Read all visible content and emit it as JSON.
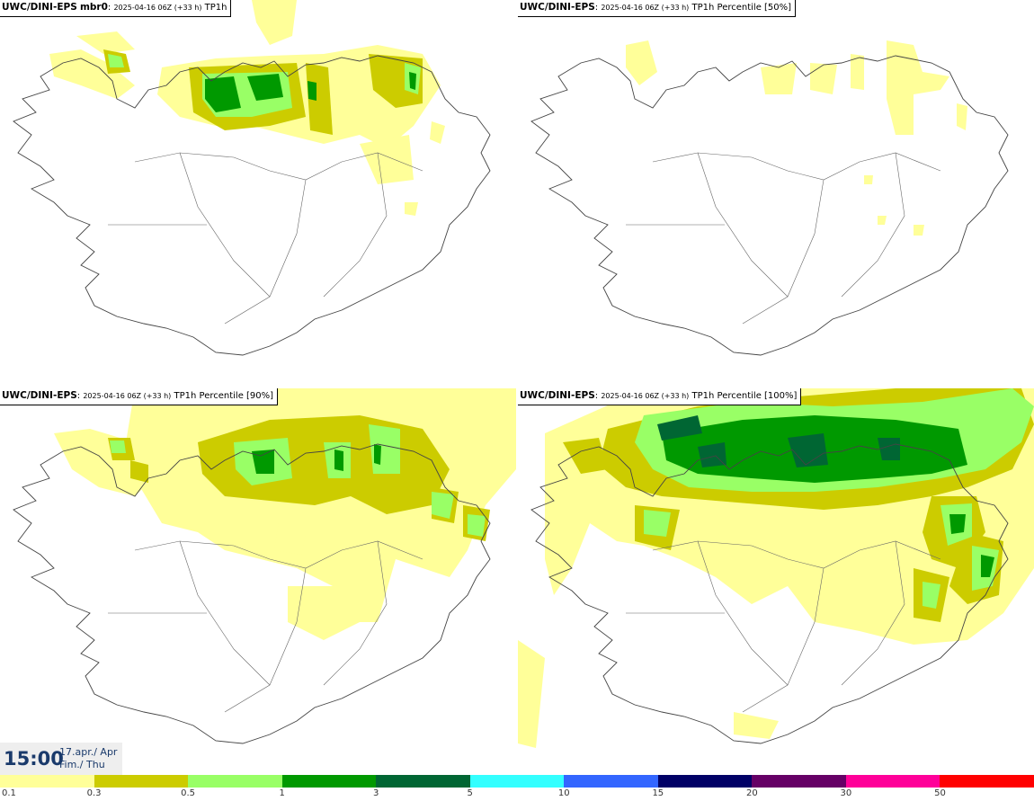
{
  "panels": [
    {
      "model": "UWC/DINI-EPS",
      "variant": "mbr0",
      "meta": "2025-04-16 06Z (+33 h)",
      "param": "TP1h"
    },
    {
      "model": "UWC/DINI-EPS",
      "variant": "",
      "meta": "2025-04-16 06Z (+33 h)",
      "param": "TP1h Percentile [50%]"
    },
    {
      "model": "UWC/DINI-EPS",
      "variant": "",
      "meta": "2025-04-16 06Z (+33 h)",
      "param": "TP1h Percentile [90%]"
    },
    {
      "model": "UWC/DINI-EPS",
      "variant": "",
      "meta": "2025-04-16 06Z (+33 h)",
      "param": "TP1h Percentile [100%]"
    }
  ],
  "valid_time": {
    "time": "15:00",
    "date_line1": "17.apr./ Apr",
    "date_line2": "Fim./ Thu"
  },
  "legend": {
    "labels": [
      "0.1",
      "0.3",
      "0.5",
      "1",
      "3",
      "5",
      "10",
      "15",
      "20",
      "30",
      "50"
    ],
    "colors": [
      "#ffff99",
      "#cccc00",
      "#99ff66",
      "#009900",
      "#006633",
      "#33ffff",
      "#3366ff",
      "#000066",
      "#660066",
      "#ff0099",
      "#ff0000"
    ]
  },
  "shading_colors": {
    "light": "#ffff99",
    "yellowgreen": "#cccc00",
    "lightgreen": "#99ff66",
    "green": "#009900",
    "darkgreen": "#006633"
  }
}
